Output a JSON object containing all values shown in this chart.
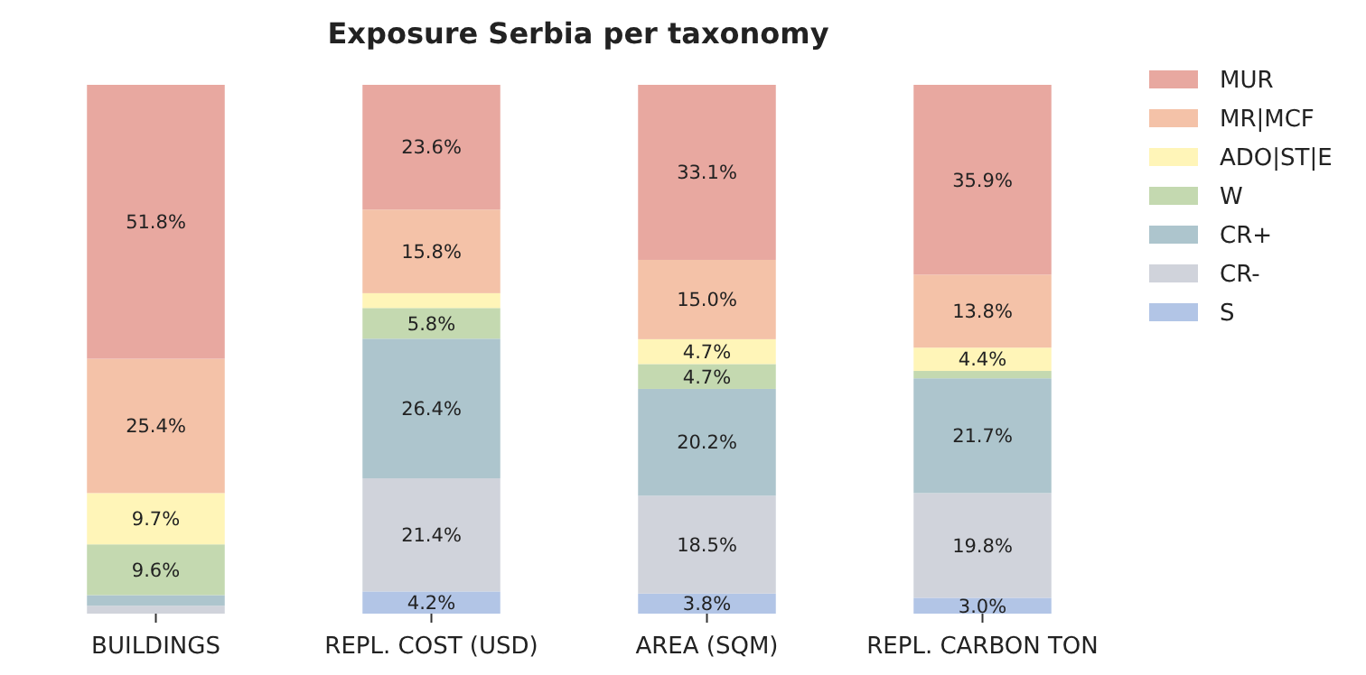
{
  "chart_data": {
    "type": "bar",
    "stacked": true,
    "title": "Exposure Serbia per taxonomy",
    "categories": [
      "BUILDINGS",
      "REPL. COST (USD)",
      "AREA (SQM)",
      "REPL. CARBON TON"
    ],
    "legend": "right",
    "series": [
      {
        "name": "S",
        "color": "#b2c5e6",
        "values": [
          null,
          4.2,
          3.8,
          3.0
        ],
        "value_labels": [
          null,
          "4.2%",
          "3.8%",
          "3.0%"
        ]
      },
      {
        "name": "CR-",
        "color": "#d0d3db",
        "values": [
          1.5,
          21.4,
          18.5,
          19.8
        ],
        "value_labels": [
          null,
          "21.4%",
          "18.5%",
          "19.8%"
        ]
      },
      {
        "name": "CR+",
        "color": "#adc5cd",
        "values": [
          2.0,
          26.4,
          20.2,
          21.7
        ],
        "value_labels": [
          null,
          "26.4%",
          "20.2%",
          "21.7%"
        ]
      },
      {
        "name": "W",
        "color": "#c4d9b0",
        "values": [
          9.6,
          5.8,
          4.7,
          1.4
        ],
        "value_labels": [
          "9.6%",
          "5.8%",
          "4.7%",
          null
        ]
      },
      {
        "name": "ADO|ST|E",
        "color": "#fff5b8",
        "values": [
          9.7,
          2.8,
          4.7,
          4.4
        ],
        "value_labels": [
          "9.7%",
          null,
          "4.7%",
          "4.4%"
        ]
      },
      {
        "name": "MR|MCF",
        "color": "#f4c2a8",
        "values": [
          25.4,
          15.8,
          15.0,
          13.8
        ],
        "value_labels": [
          "25.4%",
          "15.8%",
          "15.0%",
          "13.8%"
        ]
      },
      {
        "name": "MUR",
        "color": "#e8a8a0",
        "values": [
          51.8,
          23.6,
          33.1,
          35.9
        ],
        "value_labels": [
          "51.8%",
          "23.6%",
          "33.1%",
          "35.9%"
        ]
      }
    ]
  }
}
